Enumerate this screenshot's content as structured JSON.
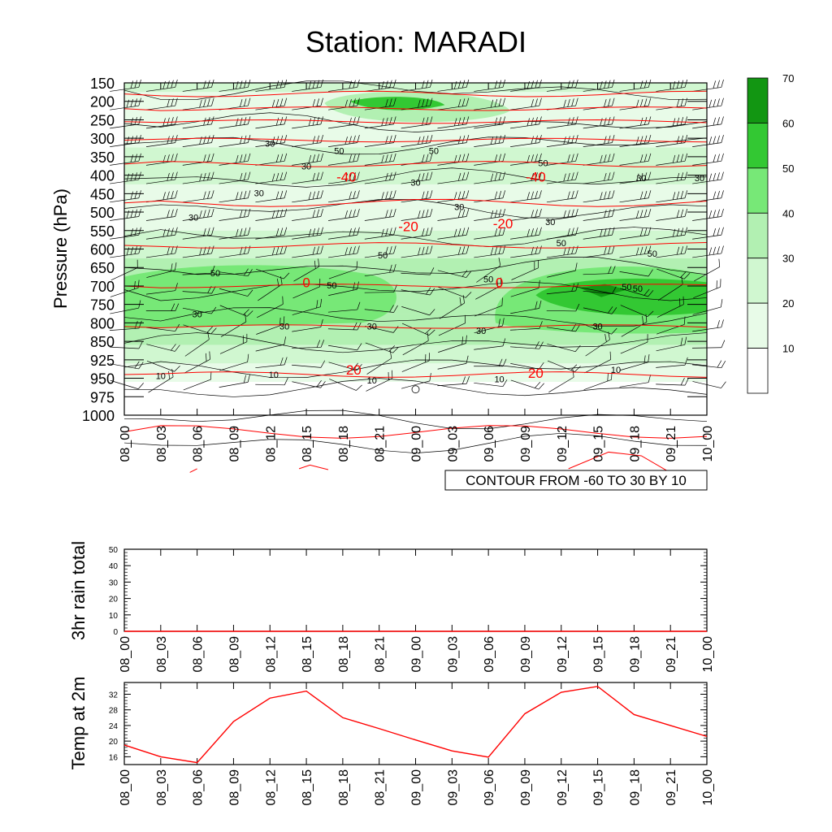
{
  "title": "Station: MARADI",
  "colors": {
    "temp_line": "#ff0000",
    "contour_line": "#000000",
    "green_fill": [
      "#ffffff",
      "#e8fbe8",
      "#d0f7d0",
      "#b2f0b2",
      "#77e877",
      "#33c833",
      "#129612"
    ]
  },
  "chart_data": [
    {
      "type": "heatmap",
      "name": "cross-section",
      "ylabel": "Pressure (hPa)",
      "xlabel": "",
      "x_ticks": [
        "08_00",
        "08_03",
        "08_06",
        "08_09",
        "08_12",
        "08_15",
        "08_18",
        "08_21",
        "09_00",
        "09_03",
        "09_06",
        "09_09",
        "09_12",
        "09_15",
        "09_18",
        "09_21",
        "10_00"
      ],
      "y_ticks": [
        "150",
        "200",
        "250",
        "300",
        "350",
        "400",
        "450",
        "500",
        "550",
        "600",
        "650",
        "700",
        "750",
        "800",
        "850",
        "925",
        "950",
        "975",
        "1000"
      ],
      "info_label": "CONTOUR FROM -60 TO 30 BY 10",
      "colorbar": {
        "levels": [
          10,
          20,
          30,
          40,
          50,
          60,
          70
        ],
        "labels": [
          "10",
          "20",
          "30",
          "40",
          "50",
          "60",
          "70"
        ]
      },
      "shaded_labels": [
        {
          "text": "30",
          "t": 4.0,
          "p": 4.0
        },
        {
          "text": "50",
          "t": 5.9,
          "p": 4.5
        },
        {
          "text": "50",
          "t": 8.5,
          "p": 4.5
        },
        {
          "text": "30",
          "t": 5.0,
          "p": 5.5
        },
        {
          "text": "50",
          "t": 11.5,
          "p": 5.3
        },
        {
          "text": "30",
          "t": 8.0,
          "p": 6.6
        },
        {
          "text": "30",
          "t": 14.2,
          "p": 6.3
        },
        {
          "text": "30",
          "t": 3.7,
          "p": 7.3
        },
        {
          "text": "30",
          "t": 9.2,
          "p": 8.2
        },
        {
          "text": "30",
          "t": 11.7,
          "p": 9.2
        },
        {
          "text": "30",
          "t": 15.8,
          "p": 6.3
        },
        {
          "text": "30",
          "t": 1.9,
          "p": 8.9
        },
        {
          "text": "50",
          "t": 7.1,
          "p": 11.4
        },
        {
          "text": "50",
          "t": 12.0,
          "p": 10.6
        },
        {
          "text": "50",
          "t": 14.5,
          "p": 11.3
        },
        {
          "text": "50",
          "t": 2.5,
          "p": 12.6
        },
        {
          "text": "50",
          "t": 10.0,
          "p": 13.0
        },
        {
          "text": "50",
          "t": 14.1,
          "p": 13.6
        },
        {
          "text": "50",
          "t": 5.7,
          "p": 13.4
        },
        {
          "text": "50",
          "t": 13.8,
          "p": 13.5
        },
        {
          "text": "30",
          "t": 2.0,
          "p": 15.3
        },
        {
          "text": "30",
          "t": 4.4,
          "p": 16.1
        },
        {
          "text": "30",
          "t": 6.8,
          "p": 16.1
        },
        {
          "text": "30",
          "t": 9.8,
          "p": 16.4
        },
        {
          "text": "30",
          "t": 13.0,
          "p": 16.1
        },
        {
          "text": "10",
          "t": 1.0,
          "p": 19.4
        },
        {
          "text": "10",
          "t": 4.1,
          "p": 19.3
        },
        {
          "text": "10",
          "t": 6.8,
          "p": 19.7
        },
        {
          "text": "10",
          "t": 10.3,
          "p": 19.6
        },
        {
          "text": "10",
          "t": 13.5,
          "p": 19.0
        }
      ],
      "temp_labels": [
        {
          "text": "-40",
          "t": 6.1,
          "p": 6.2
        },
        {
          "text": "-40",
          "t": 11.3,
          "p": 6.2
        },
        {
          "text": "-20",
          "t": 7.8,
          "p": 9.5
        },
        {
          "text": "-20",
          "t": 10.4,
          "p": 9.3
        },
        {
          "text": "0",
          "t": 5.0,
          "p": 13.2
        },
        {
          "text": "0",
          "t": 10.3,
          "p": 13.2
        },
        {
          "text": "20",
          "t": 6.3,
          "p": 19.0
        },
        {
          "text": "20",
          "t": 11.3,
          "p": 19.2
        }
      ]
    },
    {
      "type": "line",
      "name": "rain",
      "ylabel": "3hr rain total",
      "x_ticks": [
        "08_00",
        "08_03",
        "08_06",
        "08_09",
        "08_12",
        "08_15",
        "08_18",
        "08_21",
        "09_00",
        "09_03",
        "09_06",
        "09_09",
        "09_12",
        "09_15",
        "09_18",
        "09_21",
        "10_00"
      ],
      "y_ticks": [
        "0",
        "10",
        "20",
        "30",
        "40",
        "50"
      ],
      "ylim": [
        0,
        50
      ],
      "values": [
        0,
        0,
        0,
        0,
        0,
        0,
        0,
        0,
        0,
        0,
        0,
        0,
        0,
        0,
        0,
        0,
        0
      ]
    },
    {
      "type": "line",
      "name": "temp",
      "ylabel": "Temp at 2m",
      "x_ticks": [
        "08_00",
        "08_03",
        "08_06",
        "08_09",
        "08_12",
        "08_15",
        "08_18",
        "08_21",
        "09_00",
        "09_03",
        "09_06",
        "09_09",
        "09_12",
        "09_15",
        "09_18",
        "09_21",
        "10_00"
      ],
      "y_ticks": [
        "16",
        "20",
        "24",
        "28",
        "32"
      ],
      "ylim": [
        14,
        35
      ],
      "values": [
        19.0,
        16.0,
        14.5,
        25.0,
        31.0,
        32.8,
        26.0,
        23.2,
        20.3,
        17.5,
        15.9,
        27.0,
        32.5,
        34.0,
        26.8,
        24.0,
        21.2
      ]
    }
  ]
}
